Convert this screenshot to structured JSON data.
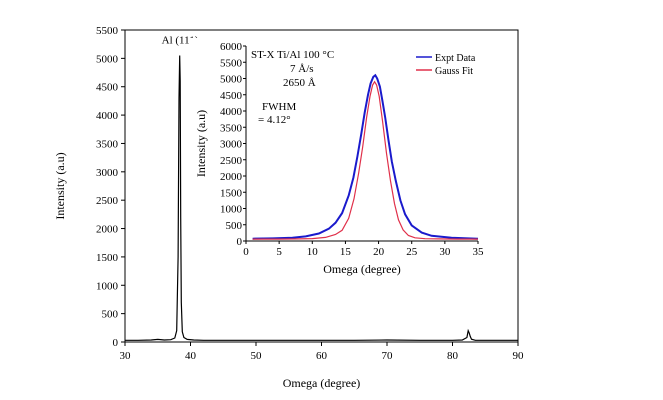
{
  "chart_data": [
    {
      "type": "line",
      "role": "main",
      "xlabel": "Omega (degree)",
      "ylabel": "Intensity (a.u)",
      "xlim": [
        30,
        90
      ],
      "ylim": [
        0,
        5500
      ],
      "xticks": [
        30,
        40,
        50,
        60,
        70,
        80,
        90
      ],
      "yticks": [
        0,
        500,
        1000,
        1500,
        2000,
        2500,
        3000,
        3500,
        4000,
        4500,
        5000,
        5500
      ],
      "color": "#000000",
      "annotations": [
        {
          "text": "Al (111)",
          "x": 38.4,
          "y": 5050
        }
      ],
      "series": [
        {
          "x": [
            30,
            32,
            34,
            35,
            36,
            37,
            37.6,
            37.9,
            38.1,
            38.25,
            38.35,
            38.42,
            38.5,
            38.6,
            38.75,
            39,
            39.5,
            40.5,
            42,
            45,
            50,
            55,
            60,
            65,
            70,
            75,
            78,
            80,
            81.5,
            82.2,
            82.4,
            82.55,
            82.7,
            82.9,
            83.5,
            85,
            88,
            90
          ],
          "y": [
            30,
            30,
            35,
            45,
            35,
            40,
            70,
            200,
            1500,
            4300,
            5050,
            4600,
            2200,
            700,
            180,
            80,
            45,
            35,
            30,
            30,
            30,
            30,
            30,
            30,
            35,
            30,
            30,
            30,
            35,
            80,
            200,
            160,
            100,
            50,
            30,
            30,
            30,
            30
          ]
        }
      ]
    },
    {
      "type": "line",
      "role": "inset",
      "xlabel": "Omega (degree)",
      "ylabel": "Intensity (a.u)",
      "xlim": [
        0,
        35
      ],
      "ylim": [
        0,
        6000
      ],
      "xticks": [
        0,
        5,
        10,
        15,
        20,
        25,
        30,
        35
      ],
      "yticks": [
        0,
        500,
        1000,
        1500,
        2000,
        2500,
        3000,
        3500,
        4000,
        4500,
        5000,
        5500,
        6000
      ],
      "legend_position": "top-right",
      "annotations": [
        "ST-X Ti/Al 100 °C",
        "7 Å/s",
        "2650 Å",
        "FWHM",
        "= 4.12°"
      ],
      "series": [
        {
          "name": "Expt Data",
          "color": "#1a1acc",
          "x": [
            1,
            4,
            7,
            9,
            11,
            12.5,
            13.5,
            14.5,
            15.5,
            16.2,
            16.8,
            17.4,
            17.9,
            18.4,
            18.8,
            19.2,
            19.5,
            19.8,
            20.2,
            20.6,
            21.0,
            21.5,
            22.0,
            22.6,
            23.3,
            24.0,
            25.0,
            26.5,
            28,
            31,
            35
          ],
          "y": [
            70,
            80,
            100,
            140,
            230,
            380,
            560,
            860,
            1400,
            1950,
            2600,
            3300,
            3950,
            4500,
            4850,
            5050,
            5100,
            5000,
            4750,
            4300,
            3800,
            3100,
            2450,
            1850,
            1250,
            820,
            480,
            260,
            160,
            100,
            70
          ]
        },
        {
          "name": "Gauss Fit",
          "color": "#e0304a",
          "x": [
            1,
            5,
            8,
            10,
            12,
            13.5,
            14.5,
            15.5,
            16.3,
            17.0,
            17.6,
            18.2,
            18.7,
            19.1,
            19.4,
            19.7,
            20.1,
            20.6,
            21.2,
            21.8,
            22.4,
            23.0,
            23.7,
            24.5,
            25.5,
            27,
            29,
            32,
            35
          ],
          "y": [
            60,
            60,
            65,
            75,
            110,
            200,
            330,
            700,
            1300,
            2100,
            2900,
            3800,
            4450,
            4800,
            4900,
            4800,
            4450,
            3700,
            2700,
            1850,
            1150,
            650,
            340,
            170,
            100,
            70,
            65,
            60,
            60
          ]
        }
      ]
    }
  ]
}
